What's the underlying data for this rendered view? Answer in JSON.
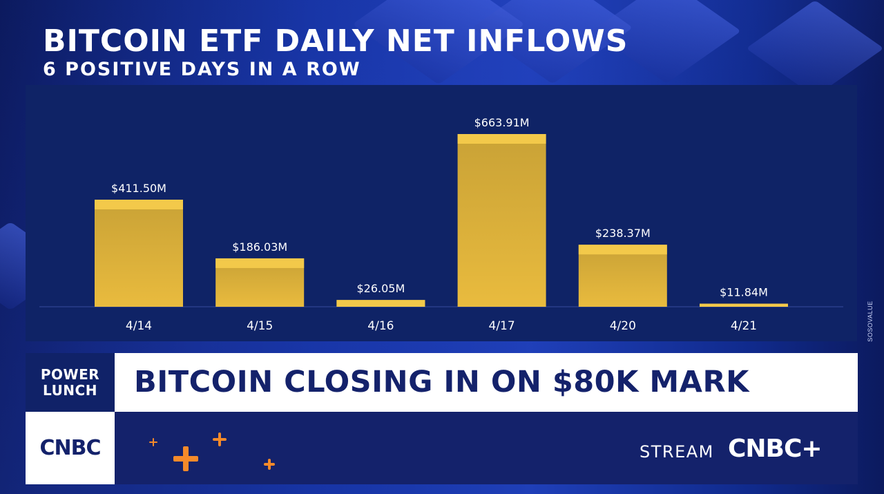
{
  "title": "BITCOIN ETF DAILY NET INFLOWS",
  "subtitle": "6 POSITIVE DAYS IN A ROW",
  "source": "SOSOVALUE",
  "lower_third": {
    "show_name_line1": "POWER",
    "show_name_line2": "LUNCH",
    "headline": "BITCOIN CLOSING IN ON $80K MARK",
    "network_logo": "CNBC",
    "stream_label": "STREAM",
    "stream_brand": "CNBC+"
  },
  "colors": {
    "bar": "#e9bb3e",
    "bar_top": "#f3c94a",
    "bar_shade": "#c9a236",
    "panel": "#0f2366",
    "accent_orange": "#f58a2a",
    "navy": "#14226b"
  },
  "chart_data": {
    "type": "bar",
    "title": "BITCOIN ETF DAILY NET INFLOWS",
    "subtitle": "6 POSITIVE DAYS IN A ROW",
    "categories": [
      "4/14",
      "4/15",
      "4/16",
      "4/17",
      "4/20",
      "4/21"
    ],
    "values": [
      411.5,
      186.03,
      26.05,
      663.91,
      238.37,
      11.84
    ],
    "labels": [
      "$411.50M",
      "$186.03M",
      "$26.05M",
      "$663.91M",
      "$238.37M",
      "$11.84M"
    ],
    "unit": "USD millions",
    "xlabel": "",
    "ylabel": "",
    "ylim": [
      0,
      663.91
    ],
    "grid": false
  }
}
